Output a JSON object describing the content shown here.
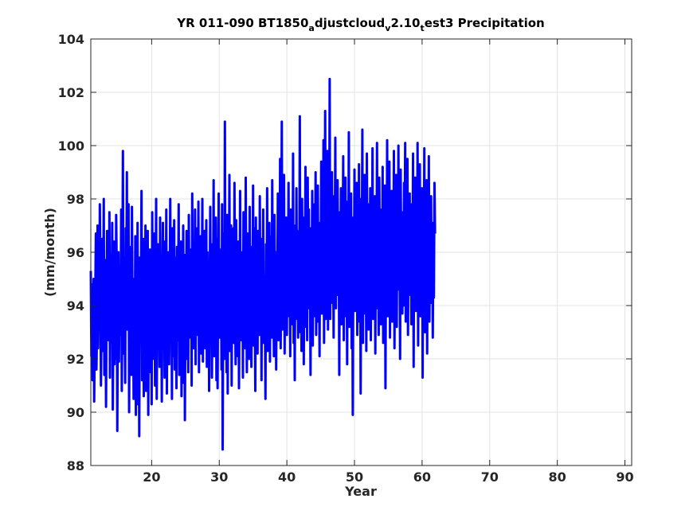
{
  "chart_data": {
    "type": "line",
    "title_parts": [
      "YR 011-090 BT1850",
      "a",
      "djustcloud",
      "v",
      "2.10",
      "t",
      "est3 Precipitation"
    ],
    "xlabel": "Year",
    "ylabel": "(mm/month)",
    "xlim": [
      11,
      91
    ],
    "ylim": [
      88,
      104
    ],
    "x_ticks": [
      20,
      30,
      40,
      50,
      60,
      70,
      80,
      90
    ],
    "y_ticks": [
      88,
      90,
      92,
      94,
      96,
      98,
      100,
      102,
      104
    ],
    "grid": true,
    "line_color": "#0000ff",
    "series": [
      {
        "x_start": 11.0,
        "x_step": 0.08333,
        "values": [
          95.3,
          92.1,
          94.8,
          91.2,
          93.6,
          95.0,
          90.4,
          92.8,
          94.5,
          96.7,
          91.6,
          93.2,
          97.0,
          92.4,
          94.9,
          93.1,
          97.8,
          95.2,
          91.0,
          93.4,
          96.5,
          92.3,
          94.0,
          98.0,
          91.4,
          93.8,
          95.7,
          90.2,
          94.6,
          96.8,
          92.7,
          95.1,
          93.0,
          97.5,
          91.3,
          95.9,
          92.6,
          94.2,
          97.1,
          90.1,
          93.3,
          96.4,
          91.8,
          94.7,
          92.0,
          97.4,
          95.5,
          89.3,
          93.7,
          96.0,
          91.9,
          95.4,
          92.9,
          94.1,
          97.6,
          90.8,
          94.4,
          99.8,
          92.2,
          95.8,
          93.5,
          91.1,
          96.9,
          94.3,
          99.0,
          93.1,
          95.6,
          97.8,
          90.0,
          94.9,
          92.5,
          96.2,
          91.4,
          97.7,
          93.9,
          95.0,
          90.5,
          94.4,
          92.1,
          96.6,
          89.9,
          95.5,
          93.3,
          97.1,
          90.3,
          94.0,
          89.1,
          95.8,
          92.6,
          94.7,
          98.3,
          91.2,
          93.8,
          96.5,
          90.6,
          94.9,
          92.3,
          97.0,
          90.8,
          95.4,
          93.0,
          96.8,
          89.9,
          94.5,
          92.2,
          96.1,
          91.5,
          95.9,
          90.3,
          97.5,
          93.4,
          95.0,
          92.0,
          96.7,
          91.0,
          94.6,
          98.0,
          90.5,
          93.8,
          96.3,
          92.4,
          95.2,
          91.7,
          97.3,
          93.1,
          95.5,
          90.4,
          94.2,
          97.1,
          92.9,
          96.4,
          91.3,
          94.8,
          93.5,
          97.6,
          90.7,
          95.3,
          92.4,
          96.0,
          91.8,
          94.0,
          98.0,
          93.2,
          95.6,
          90.5,
          96.9,
          92.1,
          94.3,
          97.2,
          91.6,
          95.8,
          93.4,
          90.9,
          96.2,
          92.7,
          94.5,
          97.8,
          91.4,
          95.2,
          93.0,
          96.4,
          90.6,
          94.8,
          92.3,
          97.0,
          91.1,
          95.9,
          89.7,
          94.2,
          93.6,
          96.8,
          92.0,
          95.5,
          91.5,
          97.4,
          93.3,
          94.9,
          92.8,
          96.1,
          91.0,
          98.2,
          93.6,
          95.7,
          92.4,
          94.3,
          97.6,
          91.8,
          96.9,
          92.9,
          95.1,
          93.8,
          97.9,
          91.5,
          95.4,
          93.1,
          96.6,
          92.2,
          94.7,
          98.0,
          91.9,
          95.3,
          93.5,
          96.8,
          92.4,
          94.9,
          97.2,
          91.7,
          96.0,
          93.2,
          95.6,
          90.8,
          94.4,
          97.7,
          92.6,
          96.3,
          91.3,
          95.0,
          93.9,
          98.7,
          92.1,
          95.8,
          93.6,
          97.3,
          91.2,
          96.5,
          90.9,
          94.7,
          98.2,
          92.8,
          96.1,
          93.4,
          95.5,
          91.6,
          97.8,
          88.6,
          94.3,
          96.7,
          92.0,
          100.9,
          93.1,
          95.9,
          91.5,
          97.4,
          90.7,
          96.1,
          93.7,
          98.9,
          92.3,
          94.8,
          97.0,
          91.0,
          95.6,
          93.2,
          96.9,
          92.6,
          98.6,
          94.4,
          91.8,
          97.2,
          93.5,
          95.3,
          92.1,
          96.4,
          90.9,
          94.0,
          98.3,
          92.7,
          96.0,
          93.3,
          95.8,
          91.3,
          97.5,
          93.9,
          95.2,
          92.4,
          98.8,
          94.6,
          91.5,
          96.7,
          93.1,
          95.4,
          92.0,
          97.7,
          94.3,
          96.2,
          91.7,
          95.6,
          93.0,
          98.5,
          92.5,
          96.9,
          94.1,
          90.8,
          97.3,
          93.6,
          95.5,
          92.2,
          96.8,
          94.7,
          92.9,
          98.1,
          93.4,
          95.9,
          91.2,
          96.5,
          94.0,
          97.6,
          92.6,
          95.1,
          93.8,
          90.5,
          96.3,
          94.5,
          98.4,
          92.3,
          95.7,
          93.2,
          97.1,
          91.9,
          96.6,
          94.2,
          92.8,
          98.7,
          93.5,
          95.3,
          92.1,
          97.4,
          94.8,
          96.0,
          91.6,
          95.5,
          93.9,
          98.2,
          92.7,
          96.4,
          94.3,
          99.5,
          92.4,
          95.8,
          100.9,
          93.1,
          96.7,
          94.6,
          98.9,
          92.2,
          95.6,
          93.7,
          97.3,
          92.9,
          96.1,
          94.4,
          98.6,
          93.6,
          95.2,
          92.1,
          97.6,
          94.9,
          96.5,
          93.3,
          99.7,
          92.6,
          95.9,
          91.2,
          97.0,
          94.1,
          98.4,
          93.5,
          95.4,
          92.8,
          96.8,
          94.7,
          101.1,
          93.0,
          96.3,
          92.3,
          98.0,
          95.1,
          97.3,
          91.8,
          95.7,
          94.3,
          99.2,
          93.2,
          96.6,
          92.7,
          98.8,
          95.0,
          97.6,
          93.9,
          95.3,
          91.4,
          96.9,
          94.5,
          98.3,
          92.5,
          96.2,
          93.6,
          97.8,
          95.4,
          99.0,
          92.9,
          96.5,
          94.2,
          98.5,
          93.4,
          95.8,
          92.1,
          97.1,
          94.8,
          99.4,
          93.7,
          96.1,
          94.0,
          100.2,
          92.6,
          95.6,
          101.3,
          93.5,
          97.7,
          94.6,
          99.8,
          93.1,
          96.8,
          94.9,
          102.5,
          93.5,
          97.2,
          95.3,
          99.0,
          94.1,
          96.4,
          92.8,
          98.1,
          95.6,
          100.3,
          93.9,
          96.9,
          94.4,
          98.7,
          95.1,
          97.5,
          91.4,
          96.6,
          94.7,
          98.4,
          93.3,
          96.0,
          95.4,
          99.6,
          92.7,
          97.1,
          94.9,
          98.8,
          93.6,
          96.3,
          91.8,
          97.9,
          95.0,
          100.5,
          93.2,
          96.7,
          94.5,
          98.2,
          92.4,
          95.9,
          89.9,
          97.3,
          94.3,
          99.1,
          93.8,
          96.2,
          95.2,
          98.6,
          92.9,
          97.5,
          94.0,
          99.3,
          93.4,
          96.8,
          90.7,
          98.0,
          95.5,
          100.6,
          92.6,
          97.0,
          94.6,
          98.9,
          93.7,
          96.4,
          92.3,
          99.7,
          95.3,
          97.8,
          93.1,
          96.1,
          94.8,
          98.4,
          92.7,
          97.4,
          94.2,
          99.9,
          93.5,
          96.5,
          95.0,
          98.1,
          92.2,
          97.2,
          94.7,
          100.1,
          93.9,
          96.0,
          92.9,
          98.8,
          95.4,
          97.6,
          93.3,
          96.9,
          94.4,
          99.2,
          92.6,
          97.9,
          95.6,
          98.5,
          90.9,
          96.3,
          94.1,
          100.2,
          93.6,
          97.1,
          95.3,
          99.4,
          92.8,
          96.6,
          94.9,
          98.3,
          93.4,
          97.7,
          95.7,
          99.8,
          92.4,
          96.8,
          94.3,
          98.9,
          93.2,
          97.3,
          95.1,
          100.0,
          94.6,
          96.2,
          92.0,
          99.1,
          95.5,
          97.5,
          93.7,
          96.7,
          94.0,
          98.6,
          95.9,
          100.1,
          93.4,
          97.0,
          94.8,
          99.5,
          92.9,
          96.4,
          95.2,
          98.2,
          94.4,
          97.8,
          93.3,
          96.1,
          95.6,
          99.7,
          91.7,
          97.4,
          94.6,
          98.8,
          93.8,
          96.9,
          95.0,
          100.1,
          92.5,
          97.2,
          94.2,
          99.3,
          93.6,
          96.5,
          95.4,
          98.4,
          91.3,
          97.6,
          94.9,
          99.9,
          93.0,
          96.3,
          95.1,
          98.7,
          92.2,
          97.9,
          94.5,
          99.6,
          93.4,
          96.6,
          95.8,
          98.1,
          94.1,
          97.1,
          92.8,
          96.8,
          94.3,
          98.6,
          96.7
        ]
      }
    ]
  }
}
